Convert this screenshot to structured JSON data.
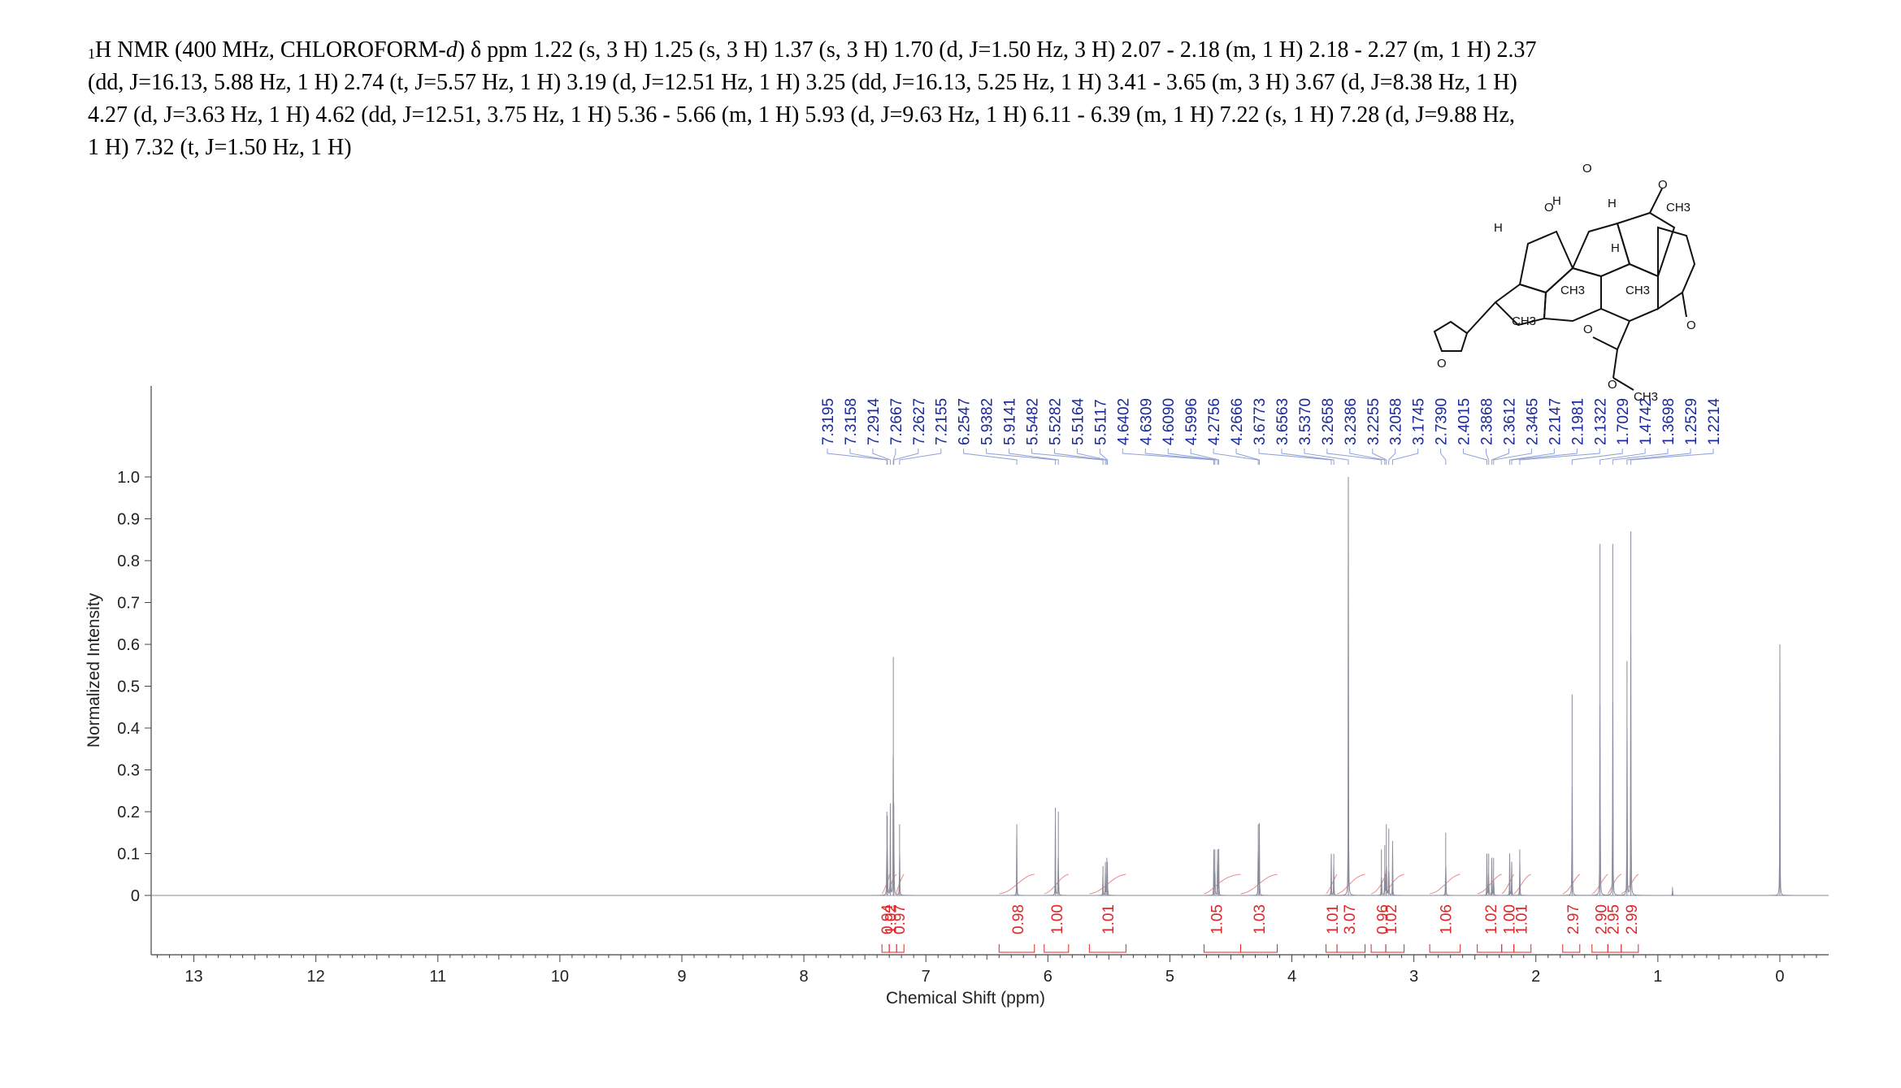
{
  "header": {
    "nucleus_sup": "1",
    "line1_main": "H NMR (400 MHz, CHLOROFORM-",
    "line1_d": "d",
    "line1_rest": ") δ ppm 1.22 (s, 3 H) 1.25 (s, 3 H) 1.37 (s, 3 H) 1.70 (d, J=1.50 Hz, 3 H) 2.07 - 2.18 (m, 1 H) 2.18 - 2.27 (m, 1 H) 2.37",
    "line2": "(dd, J=16.13, 5.88 Hz, 1 H) 2.74 (t, J=5.57 Hz, 1 H) 3.19 (d, J=12.51 Hz, 1 H) 3.25 (dd, J=16.13, 5.25 Hz, 1 H) 3.41 - 3.65 (m, 3 H) 3.67 (d, J=8.38 Hz, 1 H)",
    "line3": "4.27 (d, J=3.63 Hz, 1 H) 4.62 (dd, J=12.51, 3.75 Hz, 1 H) 5.36 - 5.66 (m, 1 H) 5.93 (d, J=9.63 Hz, 1 H) 6.11 - 6.39 (m, 1 H) 7.22 (s, 1 H) 7.28 (d, J=9.88 Hz,",
    "line4": "1 H) 7.32 (t, J=1.50 Hz, 1 H)"
  },
  "structure_labels": {
    "ch3_top": "CH3",
    "o_ring": "O",
    "o_carbonyl_top": "O",
    "h1": "H",
    "h2": "H",
    "h3": "H",
    "h4": "H",
    "ch3_a": "CH3",
    "ch3_b": "CH3",
    "o_ketone": "O",
    "ch3_c": "CH3",
    "o_ester": "O",
    "o_ester2": "O",
    "ch3_ome": "CH3",
    "o_furan": "O",
    "o_thf": "O"
  },
  "chart_data": {
    "type": "line",
    "xlabel": "Chemical Shift (ppm)",
    "ylabel": "Normalized Intensity",
    "xlim": [
      13.35,
      -0.4
    ],
    "ylim": [
      -0.15,
      1.2
    ],
    "x_ticks": [
      13,
      12,
      11,
      10,
      9,
      8,
      7,
      6,
      5,
      4,
      3,
      2,
      1,
      0
    ],
    "y_ticks": [
      "0",
      "0.1",
      "0.2",
      "0.3",
      "0.4",
      "0.5",
      "0.6",
      "0.7",
      "0.8",
      "0.9",
      "1.0"
    ],
    "y_tick_values": [
      0,
      0.1,
      0.2,
      0.3,
      0.4,
      0.5,
      0.6,
      0.7,
      0.8,
      0.9,
      1.0
    ],
    "peaks": [
      {
        "ppm": 7.3195,
        "h": 0.2
      },
      {
        "ppm": 7.3158,
        "h": 0.19
      },
      {
        "ppm": 7.2914,
        "h": 0.22
      },
      {
        "ppm": 7.2667,
        "h": 0.57
      },
      {
        "ppm": 7.2627,
        "h": 0.22
      },
      {
        "ppm": 7.2155,
        "h": 0.17
      },
      {
        "ppm": 6.2547,
        "h": 0.17
      },
      {
        "ppm": 5.9382,
        "h": 0.21
      },
      {
        "ppm": 5.9141,
        "h": 0.2
      },
      {
        "ppm": 5.5482,
        "h": 0.07
      },
      {
        "ppm": 5.5282,
        "h": 0.08
      },
      {
        "ppm": 5.5164,
        "h": 0.09
      },
      {
        "ppm": 5.5117,
        "h": 0.08
      },
      {
        "ppm": 4.6402,
        "h": 0.11
      },
      {
        "ppm": 4.6309,
        "h": 0.11
      },
      {
        "ppm": 4.609,
        "h": 0.11
      },
      {
        "ppm": 4.5996,
        "h": 0.11
      },
      {
        "ppm": 4.2756,
        "h": 0.17
      },
      {
        "ppm": 4.2666,
        "h": 0.17
      },
      {
        "ppm": 3.6773,
        "h": 0.1
      },
      {
        "ppm": 3.6563,
        "h": 0.1
      },
      {
        "ppm": 3.537,
        "h": 1.0
      },
      {
        "ppm": 3.2658,
        "h": 0.11
      },
      {
        "ppm": 3.2386,
        "h": 0.12
      },
      {
        "ppm": 3.2255,
        "h": 0.17
      },
      {
        "ppm": 3.2058,
        "h": 0.16
      },
      {
        "ppm": 3.1745,
        "h": 0.13
      },
      {
        "ppm": 2.739,
        "h": 0.15
      },
      {
        "ppm": 2.4015,
        "h": 0.1
      },
      {
        "ppm": 2.3868,
        "h": 0.1
      },
      {
        "ppm": 2.3612,
        "h": 0.09
      },
      {
        "ppm": 2.3465,
        "h": 0.09
      },
      {
        "ppm": 2.2147,
        "h": 0.1
      },
      {
        "ppm": 2.1981,
        "h": 0.08
      },
      {
        "ppm": 2.1322,
        "h": 0.11
      },
      {
        "ppm": 1.7029,
        "h": 0.48
      },
      {
        "ppm": 1.4742,
        "h": 0.84
      },
      {
        "ppm": 1.3698,
        "h": 0.84
      },
      {
        "ppm": 1.2529,
        "h": 0.56
      },
      {
        "ppm": 1.2214,
        "h": 0.87
      },
      {
        "ppm": 0.88,
        "h": 0.02
      },
      {
        "ppm": 0.0,
        "h": 0.6
      }
    ],
    "peak_labels": [
      "7.3195",
      "7.3158",
      "7.2914",
      "7.2667",
      "7.2627",
      "7.2155",
      "6.2547",
      "5.9382",
      "5.9141",
      "5.5482",
      "5.5282",
      "5.5164",
      "5.5117",
      "4.6402",
      "4.6309",
      "4.6090",
      "4.5996",
      "4.2756",
      "4.2666",
      "3.6773",
      "3.6563",
      "3.5370",
      "3.2658",
      "3.2386",
      "3.2255",
      "3.2058",
      "3.1745",
      "2.7390",
      "2.4015",
      "2.3868",
      "2.3612",
      "2.3465",
      "2.2147",
      "2.1981",
      "2.1322",
      "1.7029",
      "1.4742",
      "1.3698",
      "1.2529",
      "1.2214"
    ],
    "integrals": [
      {
        "label": "0.94",
        "from": 7.36,
        "to": 7.3,
        "center": 7.32
      },
      {
        "label": "1.02",
        "from": 7.3,
        "to": 7.24,
        "center": 7.29
      },
      {
        "label": "0.97",
        "from": 7.24,
        "to": 7.18,
        "center": 7.22
      },
      {
        "label": "0.98",
        "from": 6.4,
        "to": 6.11,
        "center": 6.25
      },
      {
        "label": "1.00",
        "from": 6.03,
        "to": 5.83,
        "center": 5.93
      },
      {
        "label": "1.01",
        "from": 5.66,
        "to": 5.36,
        "center": 5.51
      },
      {
        "label": "1.05",
        "from": 4.72,
        "to": 4.42,
        "center": 4.62
      },
      {
        "label": "1.03",
        "from": 4.42,
        "to": 4.12,
        "center": 4.27
      },
      {
        "label": "1.01",
        "from": 3.72,
        "to": 3.63,
        "center": 3.67
      },
      {
        "label": "3.07",
        "from": 3.63,
        "to": 3.4,
        "center": 3.53
      },
      {
        "label": "0.96",
        "from": 3.35,
        "to": 3.23,
        "center": 3.26
      },
      {
        "label": "1.02",
        "from": 3.23,
        "to": 3.08,
        "center": 3.19
      },
      {
        "label": "1.06",
        "from": 2.87,
        "to": 2.62,
        "center": 2.74
      },
      {
        "label": "1.02",
        "from": 2.48,
        "to": 2.28,
        "center": 2.37
      },
      {
        "label": "1.00",
        "from": 2.28,
        "to": 2.18,
        "center": 2.22
      },
      {
        "label": "1.01",
        "from": 2.18,
        "to": 2.04,
        "center": 2.12
      },
      {
        "label": "2.97",
        "from": 1.78,
        "to": 1.64,
        "center": 1.7
      },
      {
        "label": "2.90",
        "from": 1.54,
        "to": 1.41,
        "center": 1.47
      },
      {
        "label": "2.95",
        "from": 1.41,
        "to": 1.3,
        "center": 1.37
      },
      {
        "label": "2.99",
        "from": 1.3,
        "to": 1.16,
        "center": 1.22
      }
    ],
    "colors": {
      "spectrum": "#8a8a9a",
      "peak_label": "#1a2a9a",
      "integral": "#e0262a",
      "axis": "#444444"
    }
  }
}
